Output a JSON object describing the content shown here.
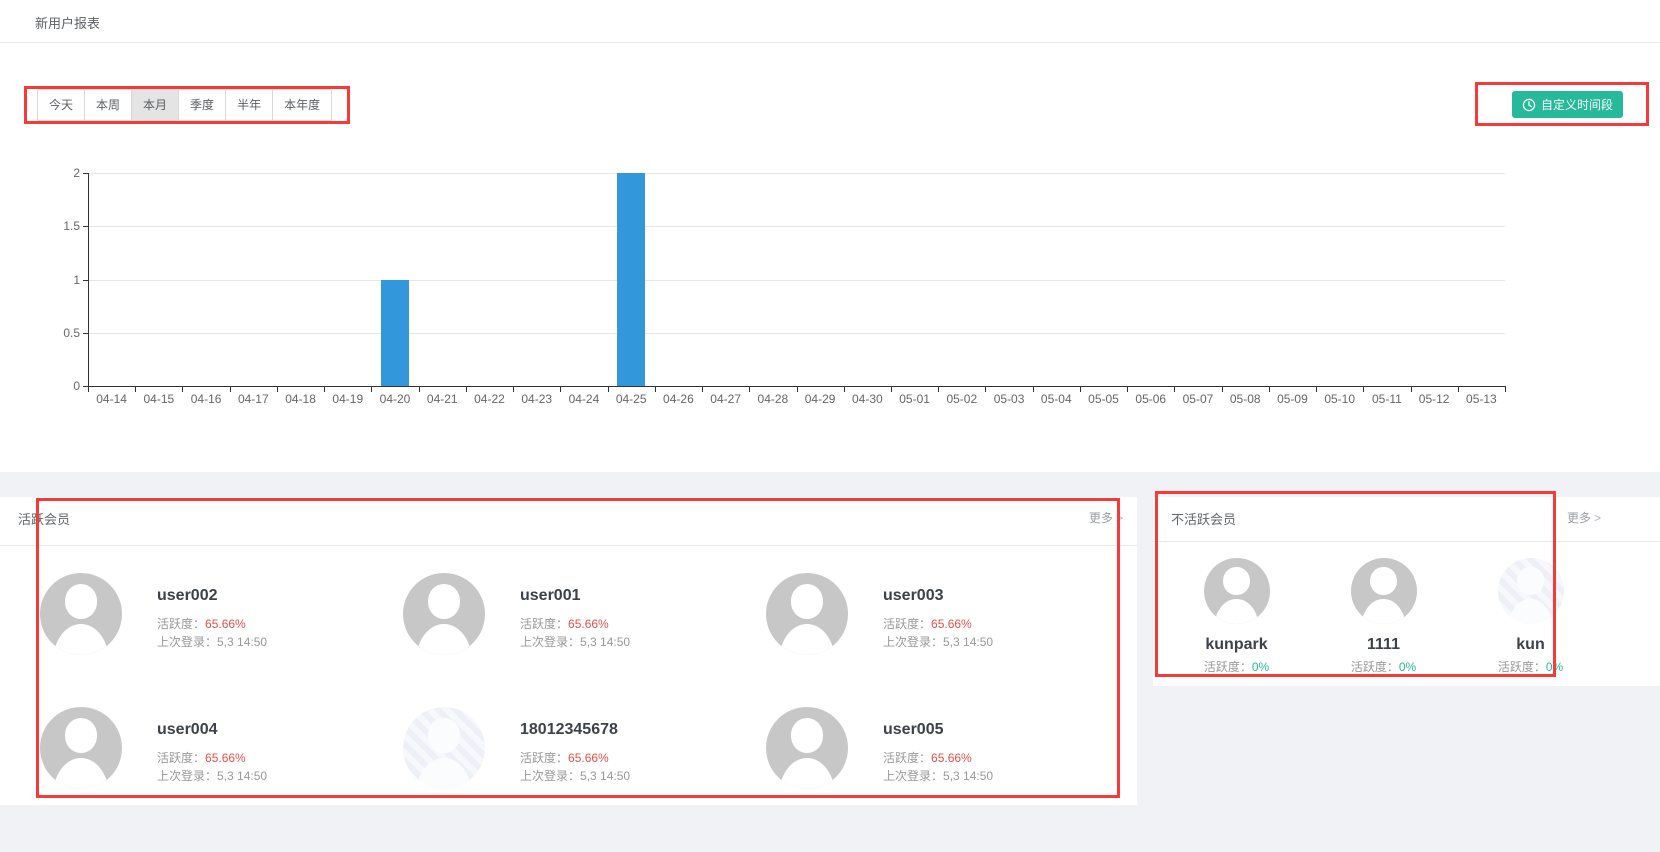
{
  "header": {
    "title": "新用户报表"
  },
  "filters": {
    "tabs": [
      {
        "label": "今天",
        "active": false
      },
      {
        "label": "本周",
        "active": false
      },
      {
        "label": "本月",
        "active": true
      },
      {
        "label": "季度",
        "active": false
      },
      {
        "label": "半年",
        "active": false
      },
      {
        "label": "本年度",
        "active": false
      }
    ],
    "custom_range_label": "自定义时间段"
  },
  "chart_data": {
    "type": "bar",
    "title": "",
    "xlabel": "",
    "ylabel": "",
    "categories": [
      "04-14",
      "04-15",
      "04-16",
      "04-17",
      "04-18",
      "04-19",
      "04-20",
      "04-21",
      "04-22",
      "04-23",
      "04-24",
      "04-25",
      "04-26",
      "04-27",
      "04-28",
      "04-29",
      "04-30",
      "05-01",
      "05-02",
      "05-03",
      "05-04",
      "05-05",
      "05-06",
      "05-07",
      "05-08",
      "05-09",
      "05-10",
      "05-11",
      "05-12",
      "05-13"
    ],
    "values": [
      0,
      0,
      0,
      0,
      0,
      0,
      1,
      0,
      0,
      0,
      0,
      2,
      0,
      0,
      0,
      0,
      0,
      0,
      0,
      0,
      0,
      0,
      0,
      0,
      0,
      0,
      0,
      0,
      0,
      0
    ],
    "y_ticks": [
      0,
      0.5,
      1,
      1.5,
      2
    ],
    "ylim": [
      0,
      2
    ],
    "bar_color": "#3398db",
    "grid": true,
    "legend_position": "none"
  },
  "active_members": {
    "title": "活跃会员",
    "more_label": "更多",
    "more_arrow": ">",
    "fields": {
      "activity": "活跃度：",
      "last_login": "上次登录："
    },
    "users": [
      {
        "name": "user002",
        "activity": "65.66%",
        "last_login": "5,3 14:50",
        "avatar_style": "gray"
      },
      {
        "name": "user001",
        "activity": "65.66%",
        "last_login": "5,3 14:50",
        "avatar_style": "gray"
      },
      {
        "name": "user003",
        "activity": "65.66%",
        "last_login": "5,3 14:50",
        "avatar_style": "gray"
      },
      {
        "name": "user004",
        "activity": "65.66%",
        "last_login": "5,3 14:50",
        "avatar_style": "gray"
      },
      {
        "name": "18012345678",
        "activity": "65.66%",
        "last_login": "5,3 14:50",
        "avatar_style": "pale"
      },
      {
        "name": "user005",
        "activity": "65.66%",
        "last_login": "5,3 14:50",
        "avatar_style": "gray"
      }
    ]
  },
  "inactive_members": {
    "title": "不活跃会员",
    "more_label": "更多",
    "more_arrow": ">",
    "fields": {
      "activity": "活跃度："
    },
    "users": [
      {
        "name": "kunpark",
        "activity": "0%",
        "avatar_style": "gray"
      },
      {
        "name": "1111",
        "activity": "0%",
        "avatar_style": "gray"
      },
      {
        "name": "kun",
        "activity": "0%",
        "avatar_style": "pale"
      }
    ]
  },
  "colors": {
    "accent_green": "#26b99a",
    "bar_blue": "#3398db",
    "activity_red": "#e3504a",
    "activity_green": "#26b99a",
    "annotation_red": "#f53b39"
  }
}
